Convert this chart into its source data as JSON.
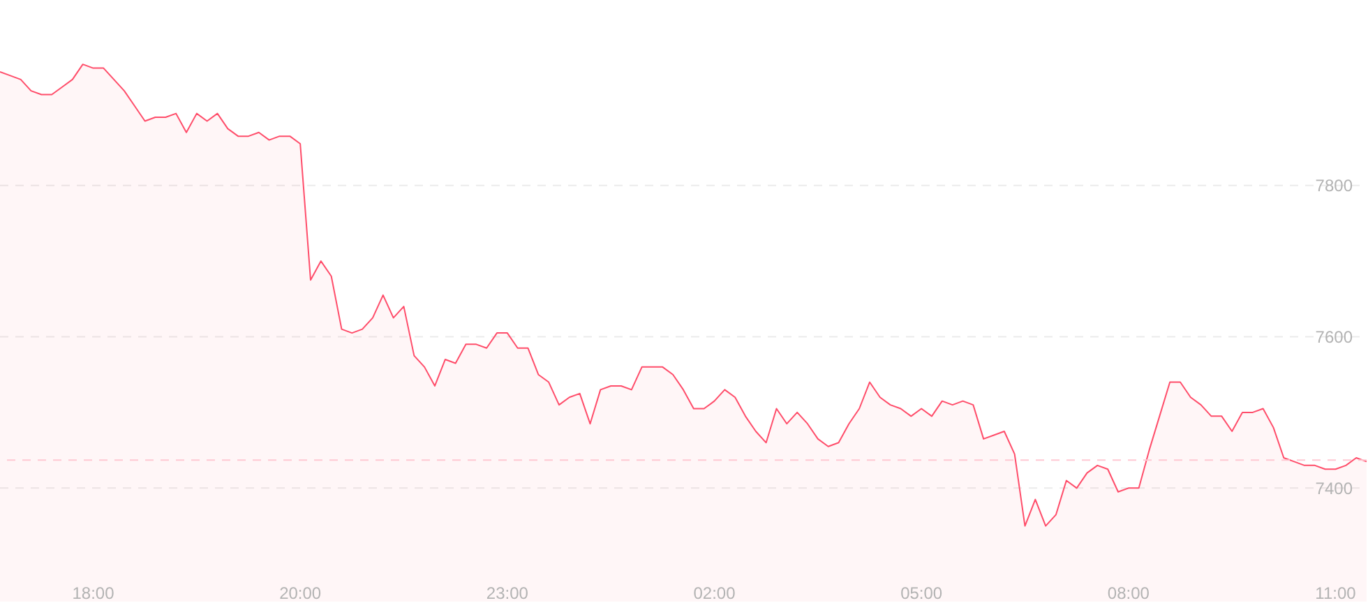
{
  "chart_data": {
    "type": "area",
    "categories": [
      null,
      null,
      null,
      null,
      null,
      null,
      null,
      null,
      null,
      "18:00",
      null,
      null,
      null,
      null,
      null,
      null,
      null,
      null,
      null,
      null,
      null,
      null,
      null,
      null,
      null,
      null,
      null,
      null,
      null,
      "20:00",
      null,
      null,
      null,
      null,
      null,
      null,
      null,
      null,
      null,
      null,
      null,
      null,
      null,
      null,
      null,
      null,
      null,
      null,
      null,
      "23:00",
      null,
      null,
      null,
      null,
      null,
      null,
      null,
      null,
      null,
      null,
      null,
      null,
      null,
      null,
      null,
      null,
      null,
      null,
      null,
      "02:00",
      null,
      null,
      null,
      null,
      null,
      null,
      null,
      null,
      null,
      null,
      null,
      null,
      null,
      null,
      null,
      null,
      null,
      null,
      null,
      "05:00",
      null,
      null,
      null,
      null,
      null,
      null,
      null,
      null,
      null,
      null,
      null,
      null,
      null,
      null,
      null,
      null,
      null,
      null,
      null,
      "08:00",
      null,
      null,
      null,
      null,
      null,
      null,
      null,
      null,
      null,
      null,
      null,
      null,
      null,
      null,
      null,
      null,
      null,
      null,
      null,
      "11:00",
      null,
      null,
      null
    ],
    "series": [
      {
        "color": "#ff4d6a",
        "values": [
          7950,
          7945,
          7940,
          7925,
          7920,
          7920,
          7930,
          7940,
          7960,
          7955,
          7955,
          7940,
          7925,
          7905,
          7885,
          7890,
          7890,
          7895,
          7870,
          7895,
          7885,
          7895,
          7875,
          7865,
          7865,
          7870,
          7860,
          7865,
          7865,
          7855,
          7675,
          7700,
          7680,
          7610,
          7605,
          7610,
          7625,
          7655,
          7625,
          7640,
          7575,
          7560,
          7535,
          7570,
          7565,
          7590,
          7590,
          7585,
          7605,
          7605,
          7585,
          7585,
          7550,
          7540,
          7510,
          7520,
          7525,
          7485,
          7530,
          7535,
          7535,
          7530,
          7560,
          7560,
          7560,
          7550,
          7530,
          7505,
          7505,
          7515,
          7530,
          7520,
          7495,
          7475,
          7460,
          7505,
          7485,
          7500,
          7485,
          7465,
          7455,
          7460,
          7485,
          7505,
          7540,
          7520,
          7510,
          7505,
          7495,
          7505,
          7495,
          7515,
          7510,
          7515,
          7510,
          7465,
          7470,
          7475,
          7445,
          7350,
          7385,
          7350,
          7365,
          7410,
          7400,
          7420,
          7430,
          7425,
          7395,
          7400,
          7400,
          7450,
          7495,
          7540,
          7540,
          7520,
          7510,
          7495,
          7495,
          7475,
          7500,
          7500,
          7505,
          7480,
          7440,
          7435,
          7430,
          7430,
          7425,
          7425,
          7430,
          7440,
          7435
        ]
      }
    ],
    "ylim": [
      7250,
      8045
    ],
    "yticks": [
      7400,
      7600,
      7800
    ],
    "grid": "y",
    "ref_lines": [
      {
        "axis": "y",
        "value": 7437,
        "color": "#ffc8d2",
        "line_style": "dashed"
      }
    ]
  }
}
